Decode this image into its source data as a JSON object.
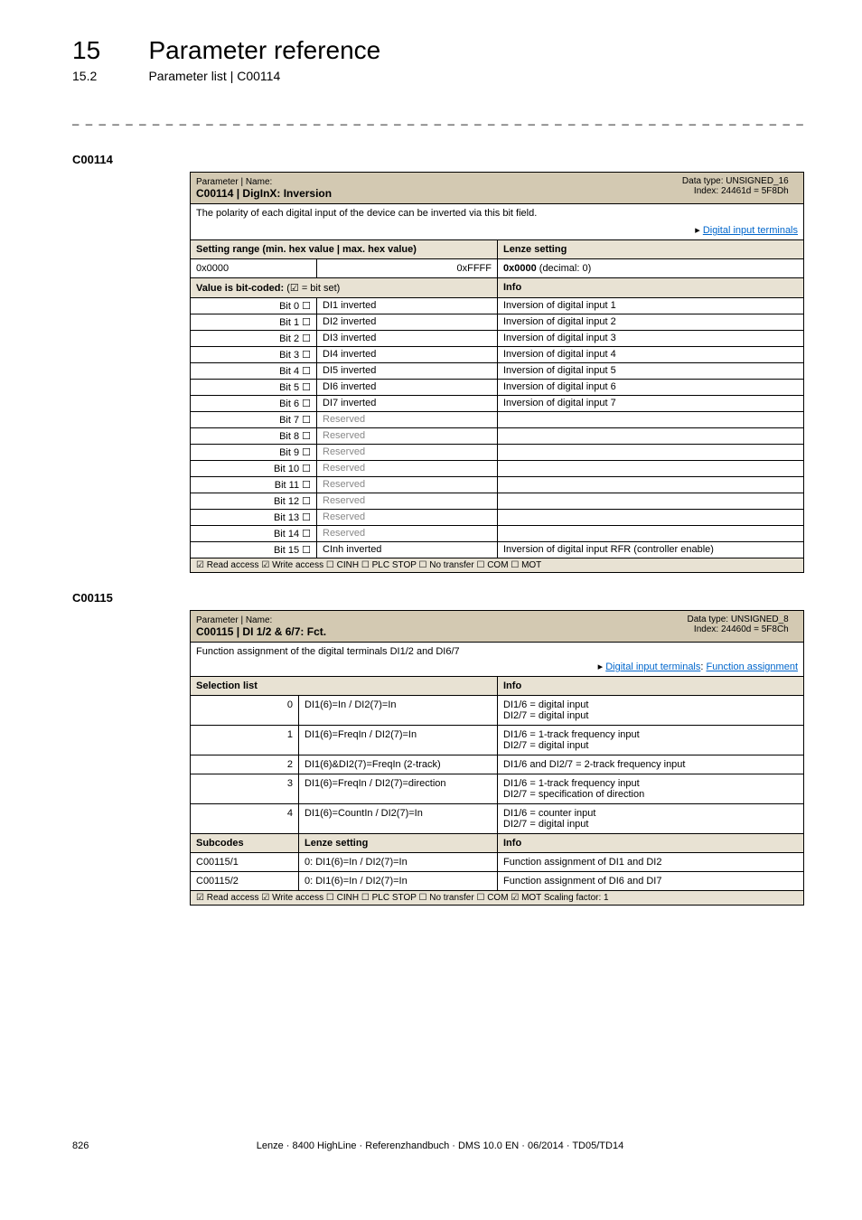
{
  "page": {
    "chapter_num": "15",
    "chapter_title": "Parameter reference",
    "section_num": "15.2",
    "section_title": "Parameter list | C00114",
    "footer_page": "826",
    "footer_text": "Lenze · 8400 HighLine · Referenzhandbuch · DMS 10.0 EN · 06/2014 · TD05/TD14",
    "separator": "_ _ _ _ _ _ _ _ _ _ _ _ _ _ _ _ _ _ _ _ _ _ _ _ _ _ _ _ _ _ _ _ _ _ _ _ _ _ _ _ _ _ _ _ _ _ _ _ _ _ _ _ _ _ _ _ _ _ _ _ _ _ _ _"
  },
  "c00114": {
    "code": "C00114",
    "name_label": "Parameter | Name:",
    "name": "C00114 | DigInX: Inversion",
    "datatype": "Data type: UNSIGNED_16",
    "index": "Index: 24461d = 5F8Dh",
    "description": "The polarity of each digital input of the device can be inverted via this bit field.",
    "link_arrow": "▸",
    "link": "Digital input terminals",
    "setting_range_label": "Setting range (min. hex value | max. hex value)",
    "lenze_setting_label": "Lenze setting",
    "range_min": "0x0000",
    "range_max": "0xFFFF",
    "lenze_setting": "0x0000",
    "lenze_setting_dec": "(decimal: 0)",
    "bitcoded_label": "Value is bit-coded:",
    "bitset_label": "(☑ = bit set)",
    "info_label": "Info",
    "bits": [
      {
        "bit": "Bit 0",
        "box": "☐",
        "name": "DI1 inverted",
        "info": "Inversion of digital input 1"
      },
      {
        "bit": "Bit 1",
        "box": "☐",
        "name": "DI2 inverted",
        "info": "Inversion of digital input 2"
      },
      {
        "bit": "Bit 2",
        "box": "☐",
        "name": "DI3 inverted",
        "info": "Inversion of digital input 3"
      },
      {
        "bit": "Bit 3",
        "box": "☐",
        "name": "DI4 inverted",
        "info": "Inversion of digital input 4"
      },
      {
        "bit": "Bit 4",
        "box": "☐",
        "name": "DI5 inverted",
        "info": "Inversion of digital input 5"
      },
      {
        "bit": "Bit 5",
        "box": "☐",
        "name": "DI6 inverted",
        "info": "Inversion of digital input 6"
      },
      {
        "bit": "Bit 6",
        "box": "☐",
        "name": "DI7 inverted",
        "info": "Inversion of digital input 7"
      },
      {
        "bit": "Bit 7",
        "box": "☐",
        "name": "Reserved",
        "info": "",
        "reserved": true
      },
      {
        "bit": "Bit 8",
        "box": "☐",
        "name": "Reserved",
        "info": "",
        "reserved": true
      },
      {
        "bit": "Bit 9",
        "box": "☐",
        "name": "Reserved",
        "info": "",
        "reserved": true
      },
      {
        "bit": "Bit 10",
        "box": "☐",
        "name": "Reserved",
        "info": "",
        "reserved": true
      },
      {
        "bit": "Bit 11",
        "box": "☐",
        "name": "Reserved",
        "info": "",
        "reserved": true
      },
      {
        "bit": "Bit 12",
        "box": "☐",
        "name": "Reserved",
        "info": "",
        "reserved": true
      },
      {
        "bit": "Bit 13",
        "box": "☐",
        "name": "Reserved",
        "info": "",
        "reserved": true
      },
      {
        "bit": "Bit 14",
        "box": "☐",
        "name": "Reserved",
        "info": "",
        "reserved": true
      },
      {
        "bit": "Bit 15",
        "box": "☐",
        "name": "CInh inverted",
        "info": "Inversion of digital input RFR (controller enable)"
      }
    ],
    "access": "☑ Read access   ☑ Write access   ☐ CINH   ☐ PLC STOP   ☐ No transfer   ☐ COM   ☐ MOT"
  },
  "c00115": {
    "code": "C00115",
    "name_label": "Parameter | Name:",
    "name": "C00115 | DI 1/2 & 6/7: Fct.",
    "datatype": "Data type: UNSIGNED_8",
    "index": "Index: 24460d = 5F8Ch",
    "description": "Function assignment of the digital terminals DI1/2 and DI6/7",
    "link_arrow": "▸",
    "link1": "Digital input terminals",
    "link_sep": ": ",
    "link2": "Function assignment",
    "selection_label": "Selection list",
    "info_label": "Info",
    "rows": [
      {
        "n": "0",
        "sel": "DI1(6)=In / DI2(7)=In",
        "info": "DI1/6 = digital input\nDI2/7 = digital input"
      },
      {
        "n": "1",
        "sel": "DI1(6)=FreqIn / DI2(7)=In",
        "info": "DI1/6 = 1-track frequency input\nDI2/7 = digital input"
      },
      {
        "n": "2",
        "sel": "DI1(6)&DI2(7)=FreqIn (2-track)",
        "info": "DI1/6 and DI2/7 = 2-track frequency input"
      },
      {
        "n": "3",
        "sel": "DI1(6)=FreqIn / DI2(7)=direction",
        "info": "DI1/6 = 1-track frequency input\nDI2/7 = specification of direction"
      },
      {
        "n": "4",
        "sel": "DI1(6)=CountIn / DI2(7)=In",
        "info": "DI1/6 = counter input\nDI2/7 = digital input"
      }
    ],
    "subcodes_label": "Subcodes",
    "lenze_setting_label": "Lenze setting",
    "subcodes": [
      {
        "code": "C00115/1",
        "setting": "0: DI1(6)=In / DI2(7)=In",
        "info": "Function assignment of DI1 and DI2"
      },
      {
        "code": "C00115/2",
        "setting": "0: DI1(6)=In / DI2(7)=In",
        "info": "Function assignment of DI6 and DI7"
      }
    ],
    "access": "☑ Read access   ☑ Write access   ☐ CINH   ☐ PLC STOP   ☐ No transfer   ☐ COM   ☑ MOT    Scaling factor: 1"
  },
  "colors": {
    "header_bg": "#d3c9b2",
    "shade_bg": "#e8e2d3",
    "link": "#0066cc",
    "reserved": "#888888"
  }
}
